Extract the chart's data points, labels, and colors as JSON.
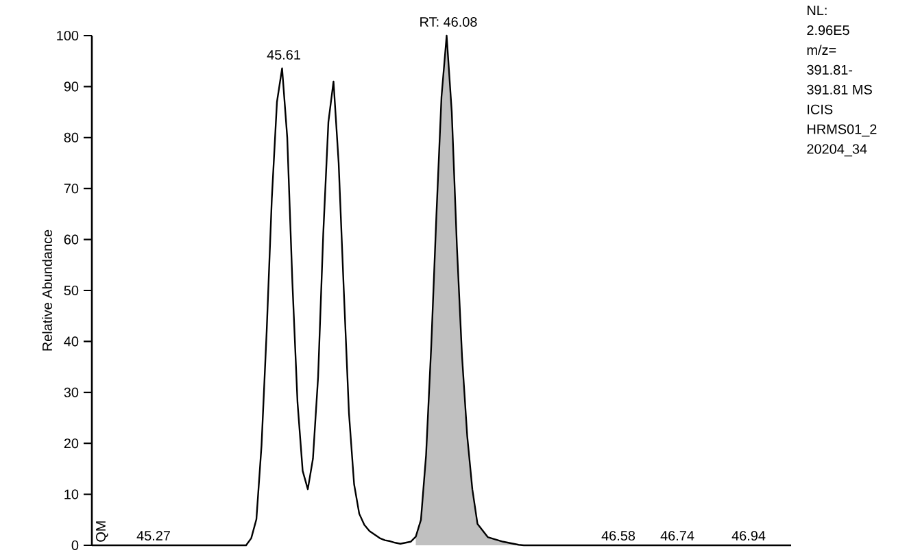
{
  "chart_data": {
    "type": "line",
    "ylabel": "Relative Abundance",
    "categories": [
      null,
      null,
      null,
      null,
      null,
      null,
      null,
      null,
      null,
      null,
      null,
      null,
      null,
      null,
      null,
      null,
      null,
      null,
      null,
      null,
      null,
      null,
      null,
      null,
      null,
      null,
      null,
      null,
      null,
      null,
      null,
      null,
      null,
      null,
      null,
      null,
      null,
      null,
      null,
      null,
      null,
      null,
      null,
      null,
      null,
      null,
      null,
      null,
      null,
      null,
      null,
      null,
      null,
      null,
      null,
      null,
      null,
      null,
      null,
      null,
      null,
      null,
      null,
      null,
      null,
      null,
      null,
      null,
      null,
      null,
      null,
      null,
      null,
      null,
      null,
      null,
      null,
      null,
      null,
      null,
      null,
      null,
      null,
      null,
      null,
      null,
      null,
      null,
      null,
      null,
      null,
      null,
      null,
      null,
      null,
      null,
      null,
      null,
      null,
      null,
      null,
      null,
      null,
      null,
      null,
      null,
      null,
      null,
      null,
      null,
      null,
      null,
      null,
      null,
      null,
      null,
      null,
      null,
      null,
      null,
      null,
      null,
      null,
      null,
      null,
      null,
      null,
      null,
      null,
      null,
      null,
      null,
      null,
      null,
      null,
      null,
      null
    ],
    "ylim": [
      0,
      100
    ],
    "yticks": [
      0,
      10,
      20,
      30,
      40,
      50,
      60,
      70,
      80,
      90,
      100
    ],
    "tick_labels": "y",
    "grid": false,
    "marker": "none",
    "series": [
      {
        "type": "area",
        "color": "#c0c0c0",
        "values": [
          null,
          null,
          null,
          null,
          null,
          null,
          null,
          null,
          null,
          null,
          null,
          null,
          null,
          null,
          null,
          null,
          null,
          null,
          null,
          null,
          null,
          null,
          null,
          null,
          null,
          null,
          null,
          null,
          null,
          null,
          null,
          null,
          null,
          null,
          null,
          null,
          null,
          null,
          null,
          null,
          null,
          null,
          null,
          null,
          null,
          null,
          null,
          null,
          null,
          null,
          null,
          null,
          null,
          null,
          null,
          null,
          null,
          null,
          null,
          null,
          null,
          null,
          null,
          1.7,
          5,
          17.7,
          39,
          64.5,
          88,
          100,
          85,
          58.6,
          37,
          21.5,
          11,
          4.2,
          2.9,
          1.6,
          1.3,
          1,
          0.7,
          0.5,
          0.3,
          0.1,
          0,
          0,
          0,
          0,
          0,
          0,
          0,
          0,
          0,
          0,
          null,
          null,
          null,
          null,
          null,
          null,
          null,
          null,
          null,
          null,
          null,
          null,
          null,
          null,
          null,
          null,
          null,
          null,
          null,
          null,
          null,
          null,
          null,
          null,
          null,
          null,
          null,
          null,
          null,
          null,
          null,
          null,
          null,
          null,
          null,
          null,
          null,
          null,
          null,
          null,
          null,
          null,
          null
        ]
      },
      {
        "color": "#000000",
        "values": [
          0,
          0,
          0,
          0,
          0,
          0,
          0,
          0,
          0,
          0,
          0,
          0,
          0,
          0,
          0,
          0,
          0,
          0,
          0,
          0,
          0,
          0,
          0,
          0,
          0,
          0,
          0,
          0,
          0,
          0,
          0,
          1.4,
          5.1,
          19.6,
          42,
          68,
          87,
          93.6,
          80,
          51.6,
          28,
          14.6,
          11,
          17,
          33,
          61,
          83,
          91,
          75,
          50,
          26,
          12,
          6.2,
          4,
          2.8,
          2.1,
          1.4,
          1,
          0.8,
          0.5,
          0.3,
          0.5,
          0.7,
          1.7,
          5,
          17.7,
          39,
          64.5,
          88,
          100,
          85,
          58.6,
          37,
          21.5,
          11,
          4.2,
          2.9,
          1.6,
          1.3,
          1,
          0.7,
          0.5,
          0.3,
          0.1,
          0,
          0,
          0,
          0,
          0,
          0,
          0,
          0,
          0,
          0,
          0,
          0,
          0,
          0,
          0,
          0,
          0,
          0,
          0,
          0,
          0,
          0,
          0,
          0,
          0,
          0,
          0,
          0,
          0,
          0,
          0,
          0,
          0,
          0,
          0,
          0,
          0,
          0,
          0,
          0,
          0,
          0,
          0,
          0,
          0,
          0,
          0,
          0,
          0,
          0,
          0,
          0,
          0
        ]
      }
    ],
    "annotations": [
      "QM",
      "45.61",
      "RT: 46.08",
      "45.27",
      "46.58",
      "46.74",
      "46.94",
      "NL:",
      "2.96E5",
      "m/z=",
      "391.81-",
      "391.81  MS",
      "ICIS",
      "HRMS01_2",
      "20204_34"
    ]
  }
}
